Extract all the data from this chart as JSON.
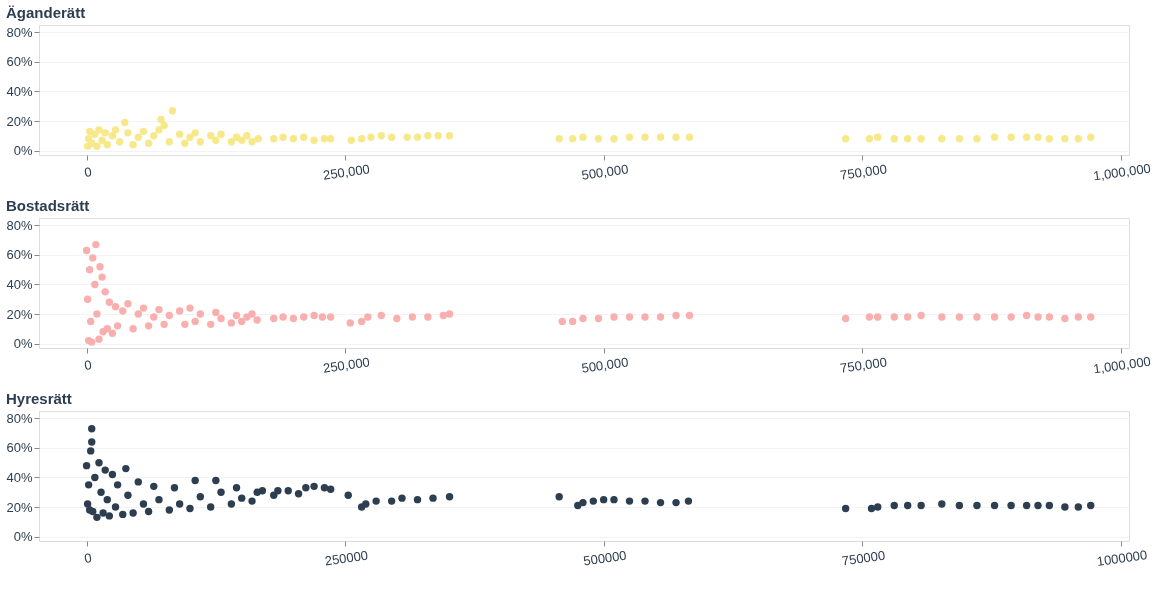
{
  "chart_data": [
    {
      "type": "scatter",
      "title": "Äganderätt",
      "marker": "circle",
      "grid": "y",
      "xlim": [
        -46000,
        1008000
      ],
      "ylim": [
        -3,
        85
      ],
      "xticks": [
        0,
        {
          "value": 250000,
          "label": "250,000"
        },
        {
          "value": 500000,
          "label": "500,000"
        },
        {
          "value": 750000,
          "label": "750,000"
        },
        {
          "value": 1000000,
          "label": "1,000,000"
        }
      ],
      "yticks": [
        {
          "value": 0,
          "label": "0%"
        },
        {
          "value": 20,
          "label": "20%"
        },
        {
          "value": 40,
          "label": "40%"
        },
        {
          "value": 60,
          "label": "60%"
        },
        {
          "value": 80,
          "label": "80%"
        }
      ],
      "series": [
        {
          "color": "#f7e98a",
          "x": [
            1000,
            2000,
            3000,
            5000,
            8000,
            10000,
            12000,
            15000,
            18000,
            20000,
            25000,
            28000,
            32000,
            37000,
            40000,
            45000,
            50000,
            55000,
            60000,
            65000,
            70000,
            72000,
            75000,
            80000,
            83000,
            90000,
            95000,
            100000,
            105000,
            110000,
            120000,
            125000,
            130000,
            140000,
            145000,
            150000,
            155000,
            160000,
            166000,
            181000,
            190000,
            200000,
            210000,
            220000,
            230000,
            236000,
            256000,
            266000,
            275000,
            285000,
            295000,
            310000,
            320000,
            330000,
            340000,
            351000,
            457000,
            470000,
            480000,
            495000,
            510000,
            525000,
            540000,
            555000,
            570000,
            583000,
            734000,
            757000,
            765000,
            781000,
            794000,
            807000,
            827000,
            844000,
            861000,
            878000,
            894000,
            909000,
            920000,
            931000,
            946000,
            959000,
            971000
          ],
          "values": [
            3,
            8,
            13,
            5,
            11,
            3,
            14,
            7,
            12,
            4,
            10,
            14,
            6,
            19,
            12,
            4,
            9,
            13,
            5,
            10,
            14,
            21,
            17,
            6,
            27,
            11,
            5,
            9,
            12,
            6,
            10,
            7,
            11,
            6,
            9,
            7,
            10,
            6,
            8,
            8,
            9,
            8,
            9,
            7,
            8,
            8,
            7,
            8,
            9,
            10,
            9,
            9,
            9,
            10,
            10,
            10,
            8,
            8,
            9,
            8,
            8,
            9,
            9,
            9,
            9,
            9,
            8,
            8,
            9,
            8,
            8,
            8,
            8,
            8,
            8,
            9,
            9,
            9,
            9,
            8,
            8,
            8,
            9
          ]
        }
      ]
    },
    {
      "type": "scatter",
      "title": "Bostadsrätt",
      "marker": "circle",
      "grid": "y",
      "xlim": [
        -46000,
        1008000
      ],
      "ylim": [
        -3,
        85
      ],
      "xticks": [
        0,
        {
          "value": 250000,
          "label": "250,000"
        },
        {
          "value": 500000,
          "label": "500,000"
        },
        {
          "value": 750000,
          "label": "750,000"
        },
        {
          "value": 1000000,
          "label": "1,000,000"
        }
      ],
      "yticks": [
        {
          "value": 0,
          "label": "0%"
        },
        {
          "value": 20,
          "label": "20%"
        },
        {
          "value": 40,
          "label": "40%"
        },
        {
          "value": 60,
          "label": "60%"
        },
        {
          "value": 80,
          "label": "80%"
        }
      ],
      "series": [
        {
          "color": "#f9afae",
          "x": [
            0,
            1000,
            2000,
            3000,
            4000,
            5000,
            6000,
            8000,
            9000,
            10000,
            12000,
            13000,
            15000,
            16000,
            18000,
            20000,
            22000,
            25000,
            28000,
            30000,
            35000,
            40000,
            45000,
            50000,
            55000,
            60000,
            65000,
            70000,
            75000,
            80000,
            90000,
            95000,
            100000,
            105000,
            110000,
            120000,
            125000,
            130000,
            140000,
            145000,
            150000,
            155000,
            160000,
            165000,
            181000,
            190000,
            200000,
            210000,
            220000,
            228000,
            236000,
            255000,
            266000,
            272000,
            285000,
            300000,
            315000,
            330000,
            345000,
            351000,
            460000,
            470000,
            480000,
            495000,
            510000,
            525000,
            540000,
            555000,
            570000,
            583000,
            734000,
            757000,
            765000,
            781000,
            794000,
            807000,
            827000,
            844000,
            861000,
            878000,
            894000,
            909000,
            920000,
            931000,
            946000,
            959000,
            971000
          ],
          "values": [
            63,
            30,
            2,
            50,
            15,
            1,
            58,
            40,
            67,
            20,
            3,
            52,
            45,
            8,
            35,
            10,
            28,
            7,
            25,
            12,
            22,
            27,
            10,
            20,
            24,
            12,
            18,
            23,
            13,
            19,
            22,
            13,
            24,
            15,
            20,
            13,
            21,
            17,
            14,
            19,
            15,
            18,
            20,
            16,
            17,
            18,
            17,
            18,
            19,
            18,
            18,
            14,
            15,
            18,
            19,
            17,
            18,
            18,
            19,
            20,
            15,
            15,
            17,
            17,
            18,
            18,
            18,
            18,
            19,
            19,
            17,
            18,
            18,
            18,
            18,
            19,
            18,
            18,
            18,
            18,
            18,
            19,
            18,
            18,
            17,
            18,
            18
          ]
        }
      ]
    },
    {
      "type": "scatter",
      "title": "Hyresrätt",
      "marker": "circle",
      "grid": "y",
      "xlim": [
        -46000,
        1008000
      ],
      "ylim": [
        -3,
        85
      ],
      "xticks": [
        0,
        250000,
        500000,
        750000,
        1000000
      ],
      "yticks": [
        {
          "value": 0,
          "label": "0%"
        },
        {
          "value": 20,
          "label": "20%"
        },
        {
          "value": 40,
          "label": "40%"
        },
        {
          "value": 60,
          "label": "60%"
        },
        {
          "value": 80,
          "label": "80%"
        }
      ],
      "series": [
        {
          "color": "#2c3e50",
          "x": [
            0,
            1000,
            2000,
            3000,
            4000,
            5000,
            5000,
            6000,
            8000,
            10000,
            12000,
            14000,
            16000,
            18000,
            20000,
            22000,
            25000,
            28000,
            30000,
            35000,
            38000,
            40000,
            45000,
            50000,
            55000,
            60000,
            65000,
            70000,
            80000,
            85000,
            90000,
            100000,
            105000,
            110000,
            120000,
            125000,
            130000,
            140000,
            145000,
            150000,
            160000,
            165000,
            170000,
            181000,
            185000,
            195000,
            205000,
            212000,
            220000,
            230000,
            236000,
            253000,
            266000,
            270000,
            280000,
            295000,
            305000,
            320000,
            335000,
            351000,
            457000,
            475000,
            480000,
            490000,
            500000,
            510000,
            525000,
            540000,
            555000,
            570000,
            582000,
            734000,
            759000,
            765000,
            781000,
            794000,
            807000,
            827000,
            844000,
            861000,
            878000,
            894000,
            909000,
            920000,
            931000,
            946000,
            959000,
            971000
          ],
          "values": [
            48,
            22,
            35,
            18,
            58,
            73,
            64,
            17,
            40,
            13,
            50,
            30,
            16,
            45,
            25,
            14,
            42,
            20,
            35,
            15,
            46,
            28,
            16,
            37,
            22,
            17,
            34,
            25,
            18,
            33,
            22,
            19,
            38,
            27,
            20,
            38,
            30,
            22,
            33,
            26,
            24,
            30,
            31,
            28,
            31,
            31,
            29,
            33,
            34,
            33,
            32,
            28,
            20,
            22,
            24,
            24,
            26,
            25,
            26,
            27,
            27,
            21,
            23,
            24,
            25,
            25,
            24,
            24,
            23,
            23,
            24,
            19,
            19,
            20,
            21,
            21,
            21,
            22,
            21,
            21,
            21,
            21,
            21,
            21,
            21,
            20,
            20,
            21
          ]
        }
      ]
    }
  ]
}
